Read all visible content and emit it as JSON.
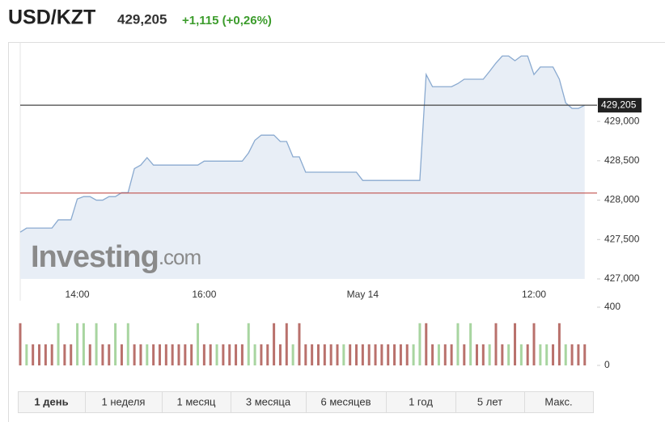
{
  "header": {
    "title": "USD/KZT",
    "price": "429,205",
    "change": "+1,115 (+0,26%)"
  },
  "chart_data": [
    {
      "type": "area",
      "color": "#8aaad0",
      "fill": "#e8eef6",
      "watermark": [
        "Investing",
        ".com"
      ],
      "categories": [
        null,
        null,
        null,
        null,
        null,
        null,
        null,
        null,
        null,
        "14:00",
        null,
        null,
        null,
        null,
        null,
        null,
        null,
        null,
        null,
        null,
        null,
        null,
        null,
        null,
        null,
        null,
        null,
        null,
        null,
        "16:00",
        null,
        null,
        null,
        null,
        null,
        null,
        null,
        null,
        null,
        null,
        null,
        null,
        null,
        null,
        null,
        null,
        null,
        null,
        null,
        null,
        null,
        null,
        null,
        null,
        "May 14",
        null,
        null,
        null,
        null,
        null,
        null,
        null,
        null,
        null,
        null,
        null,
        null,
        null,
        null,
        null,
        null,
        null,
        null,
        null,
        null,
        null,
        null,
        null,
        null,
        null,
        null,
        "12:00",
        null,
        null,
        null,
        null,
        null,
        null,
        null,
        null
      ],
      "values": [
        427593,
        427645,
        427645,
        427645,
        427645,
        427645,
        427750,
        427750,
        427750,
        428015,
        428045,
        428045,
        428000,
        428000,
        428045,
        428045,
        428095,
        428095,
        428400,
        428445,
        428540,
        428445,
        428445,
        428445,
        428445,
        428445,
        428445,
        428445,
        428445,
        428495,
        428495,
        428495,
        428495,
        428495,
        428495,
        428495,
        428600,
        428760,
        428825,
        428825,
        428825,
        428745,
        428745,
        428550,
        428550,
        428355,
        428355,
        428355,
        428355,
        428355,
        428355,
        428355,
        428355,
        428355,
        428250,
        428250,
        428250,
        428250,
        428250,
        428250,
        428250,
        428250,
        428250,
        428250,
        429595,
        429440,
        429440,
        429440,
        429440,
        429480,
        429535,
        429535,
        429535,
        429535,
        429635,
        429740,
        429830,
        429830,
        429770,
        429830,
        429830,
        429595,
        429690,
        429690,
        429690,
        429535,
        429235,
        429165,
        429165,
        429205
      ],
      "ylim": [
        427000,
        429925
      ],
      "yticks": [
        {
          "value": 427000,
          "label": "427,000"
        },
        {
          "value": 427500,
          "label": "427,500"
        },
        {
          "value": 428000,
          "label": "428,000"
        },
        {
          "value": 428500,
          "label": "428,500"
        },
        {
          "value": 429000,
          "label": "429,000"
        }
      ],
      "last_price": {
        "value": 429205,
        "label": "429,205",
        "color": "#444444"
      },
      "reference_line": {
        "value": 428090,
        "color": "#c0504d"
      }
    },
    {
      "type": "bar",
      "ylim": [
        0,
        400
      ],
      "yticks": [
        0,
        400
      ],
      "series": [
        {
          "color": "#a8d5a0",
          "values": [
            null,
            145,
            null,
            null,
            null,
            null,
            290,
            null,
            null,
            290,
            290,
            null,
            290,
            null,
            null,
            290,
            null,
            290,
            null,
            null,
            145,
            null,
            null,
            null,
            null,
            null,
            null,
            null,
            290,
            null,
            null,
            145,
            null,
            null,
            null,
            null,
            290,
            145,
            null,
            null,
            null,
            null,
            null,
            145,
            null,
            null,
            null,
            null,
            null,
            null,
            null,
            145,
            null,
            null,
            null,
            null,
            null,
            null,
            null,
            null,
            null,
            null,
            145,
            290,
            null,
            null,
            145,
            null,
            null,
            290,
            null,
            290,
            null,
            null,
            145,
            null,
            null,
            145,
            null,
            145,
            null,
            null,
            145,
            145,
            null,
            null,
            145,
            null,
            null,
            null
          ]
        },
        {
          "color": "#b9716c",
          "values": [
            290,
            null,
            145,
            145,
            145,
            145,
            null,
            145,
            145,
            null,
            null,
            145,
            null,
            145,
            145,
            null,
            145,
            null,
            145,
            145,
            null,
            145,
            145,
            145,
            145,
            145,
            145,
            145,
            null,
            145,
            145,
            null,
            145,
            145,
            145,
            145,
            null,
            null,
            145,
            145,
            290,
            145,
            290,
            null,
            290,
            145,
            145,
            145,
            145,
            145,
            145,
            null,
            145,
            145,
            145,
            145,
            145,
            145,
            145,
            145,
            145,
            145,
            null,
            null,
            290,
            145,
            null,
            145,
            145,
            null,
            145,
            null,
            145,
            145,
            null,
            290,
            145,
            null,
            290,
            null,
            145,
            290,
            null,
            null,
            145,
            290,
            null,
            145,
            145,
            145
          ]
        }
      ]
    }
  ],
  "tabs": [
    "1 день",
    "1 неделя",
    "1 месяц",
    "3 месяца",
    "6 месяцев",
    "1 год",
    "5 лет",
    "Макс."
  ]
}
